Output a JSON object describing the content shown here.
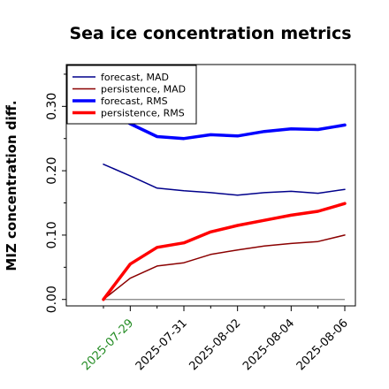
{
  "chart_data": {
    "type": "line",
    "title": "Sea ice concentration metrics",
    "xlabel": "",
    "ylabel": "MIZ concentration diff.",
    "ylim": [
      -0.01,
      0.365
    ],
    "yticks": [
      "0.00",
      "0.10",
      "0.20",
      "0.30"
    ],
    "x": [
      0,
      1,
      2,
      3,
      4,
      5,
      6,
      7,
      8,
      9
    ],
    "xticks": [
      {
        "index": 1,
        "label": "2025-07-29",
        "color": "#228b22"
      },
      {
        "index": 3,
        "label": "2025-07-31",
        "color": "#000000"
      },
      {
        "index": 5,
        "label": "2025-08-02",
        "color": "#000000"
      },
      {
        "index": 7,
        "label": "2025-08-04",
        "color": "#000000"
      },
      {
        "index": 9,
        "label": "2025-08-06",
        "color": "#000000"
      }
    ],
    "series": [
      {
        "name": "forecast,  MAD",
        "color": "#00008b",
        "width": 1.5,
        "values": [
          0.21,
          0.192,
          0.173,
          0.169,
          0.166,
          0.162,
          0.166,
          0.168,
          0.165,
          0.171
        ]
      },
      {
        "name": "persistence, MAD",
        "color": "#8b0000",
        "width": 1.5,
        "values": [
          0.0,
          0.033,
          0.052,
          0.057,
          0.07,
          0.077,
          0.083,
          0.087,
          0.09,
          0.1
        ]
      },
      {
        "name": "forecast,  RMS",
        "color": "#0000ff",
        "width": 3.5,
        "values": [
          0.297,
          0.273,
          0.253,
          0.25,
          0.256,
          0.254,
          0.261,
          0.265,
          0.264,
          0.271
        ]
      },
      {
        "name": "persistence, RMS",
        "color": "#ff0000",
        "width": 3.5,
        "values": [
          0.0,
          0.055,
          0.081,
          0.088,
          0.105,
          0.115,
          0.123,
          0.131,
          0.137,
          0.149
        ]
      }
    ],
    "reference_line": {
      "y": 0.0,
      "color": "#808080"
    },
    "legend_placement": "upper-left",
    "grid": false
  }
}
